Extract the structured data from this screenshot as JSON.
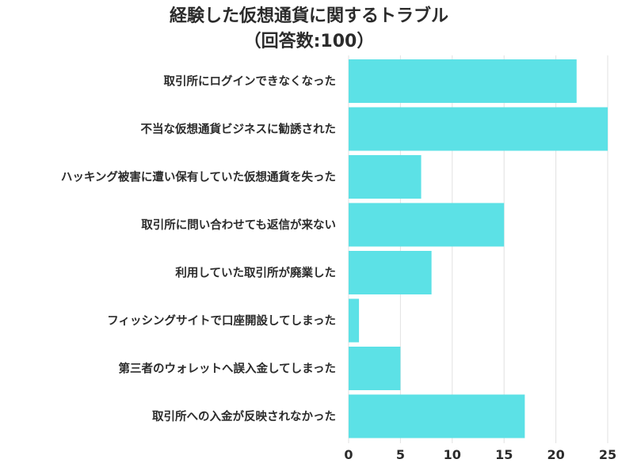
{
  "chart_data": {
    "type": "bar",
    "orientation": "horizontal",
    "title_lines": [
      "経験した仮想通貨に関するトラブル",
      "（回答数:100）"
    ],
    "categories": [
      "取引所にログインできなくなった",
      "不当な仮想通貨ビジネスに勧誘された",
      "ハッキング被害に遭い保有していた仮想通貨を失った",
      "取引所に問い合わせても返信が来ない",
      "利用していた取引所が廃業した",
      "フィッシングサイトで口座開設してしまった",
      "第三者のウォレットへ誤入金してしまった",
      "取引所への入金が反映されなかった"
    ],
    "values": [
      22,
      25,
      7,
      15,
      8,
      1,
      5,
      17
    ],
    "xlim": [
      0,
      25
    ],
    "xticks": [
      0,
      5,
      10,
      15,
      20,
      25
    ],
    "xtick_labels": [
      "0",
      "5",
      "10",
      "15",
      "20",
      "25"
    ],
    "grid": "vertical",
    "bar_color": "#5ce1e6",
    "grid_color": "#e2e2e2"
  }
}
